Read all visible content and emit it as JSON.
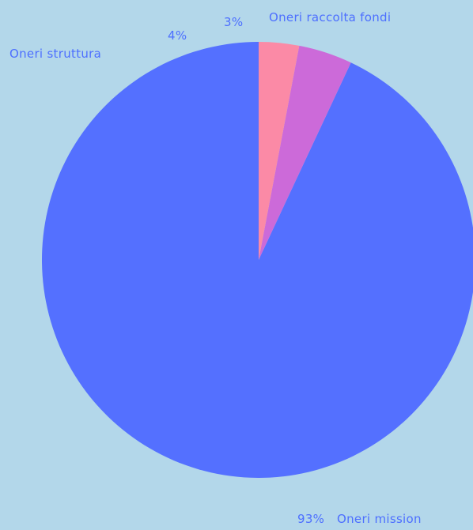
{
  "chart_data": {
    "type": "pie",
    "title": "",
    "start": "top",
    "direction": "counterclockwise",
    "slices": [
      {
        "label": "Oneri mission",
        "value": 93,
        "percent_label": "93%",
        "color": "#5470ff"
      },
      {
        "label": "Oneri struttura",
        "value": 4,
        "percent_label": "4%",
        "color": "#cc6ad9"
      },
      {
        "label": "Oneri raccolta fondi",
        "value": 3,
        "percent_label": "3%",
        "color": "#fb8aa6"
      }
    ],
    "label_color": "#4d6fff",
    "background": "#b3d7ea"
  }
}
